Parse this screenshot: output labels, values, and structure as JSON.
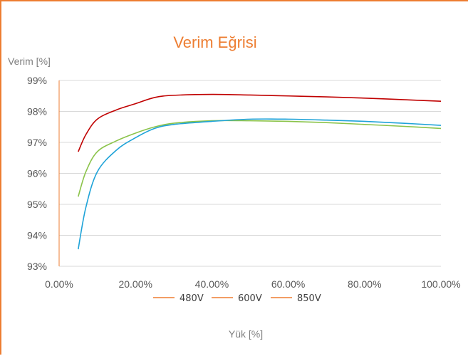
{
  "chart_data": {
    "type": "line",
    "title": "Verim Eğrisi",
    "ylabel": "Verim [%]",
    "xlabel": "Yük [%]",
    "xlim": [
      0,
      100
    ],
    "ylim": [
      93,
      99
    ],
    "x_ticks": [
      "0.00%",
      "20.00%",
      "40.00%",
      "60.00%",
      "80.00%",
      "100.00%"
    ],
    "y_ticks": [
      "93%",
      "94%",
      "95%",
      "96%",
      "97%",
      "98%",
      "99%"
    ],
    "grid": true,
    "legend_position": "bottom",
    "legend": [
      "480V",
      "600V",
      "850V"
    ],
    "series": [
      {
        "color": "#c00000",
        "points": [
          [
            5,
            96.7
          ],
          [
            7,
            97.25
          ],
          [
            10,
            97.75
          ],
          [
            15,
            98.05
          ],
          [
            20,
            98.25
          ],
          [
            25,
            98.45
          ],
          [
            30,
            98.52
          ],
          [
            40,
            98.55
          ],
          [
            50,
            98.53
          ],
          [
            60,
            98.5
          ],
          [
            70,
            98.47
          ],
          [
            80,
            98.43
          ],
          [
            90,
            98.38
          ],
          [
            100,
            98.33
          ]
        ]
      },
      {
        "color": "#8bc34a",
        "points": [
          [
            5,
            95.25
          ],
          [
            7,
            96.05
          ],
          [
            10,
            96.7
          ],
          [
            15,
            97.05
          ],
          [
            20,
            97.3
          ],
          [
            25,
            97.5
          ],
          [
            30,
            97.62
          ],
          [
            40,
            97.7
          ],
          [
            50,
            97.7
          ],
          [
            60,
            97.68
          ],
          [
            70,
            97.64
          ],
          [
            80,
            97.58
          ],
          [
            90,
            97.52
          ],
          [
            100,
            97.45
          ]
        ]
      },
      {
        "color": "#1fa3d8",
        "points": [
          [
            5,
            93.55
          ],
          [
            7,
            94.9
          ],
          [
            10,
            96.05
          ],
          [
            15,
            96.75
          ],
          [
            20,
            97.15
          ],
          [
            25,
            97.45
          ],
          [
            30,
            97.58
          ],
          [
            40,
            97.68
          ],
          [
            50,
            97.75
          ],
          [
            60,
            97.75
          ],
          [
            70,
            97.72
          ],
          [
            80,
            97.68
          ],
          [
            90,
            97.62
          ],
          [
            100,
            97.55
          ]
        ]
      }
    ]
  },
  "colors": {
    "title": "#ed7d31",
    "legend_line": "#ed7d31",
    "grid": "#d9d9d9",
    "axis": "#ed7d31"
  }
}
